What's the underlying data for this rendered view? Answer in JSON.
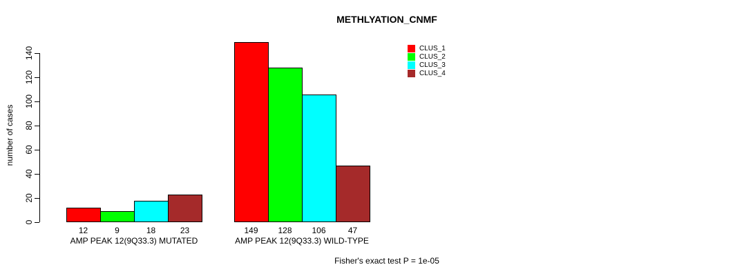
{
  "chart_data": {
    "type": "bar",
    "title": "METHLYATION_CNMF",
    "ylabel": "number of cases",
    "xlabel": "",
    "ylim": [
      0,
      140
    ],
    "yticks": [
      0,
      20,
      40,
      60,
      80,
      100,
      120,
      140
    ],
    "grid": false,
    "legend_position": "top-right",
    "show_value_labels": true,
    "categories": [
      "AMP PEAK 12(9Q33.3) MUTATED",
      "AMP PEAK 12(9Q33.3) WILD-TYPE"
    ],
    "series": [
      {
        "name": "CLUS_1",
        "color": "#ff0000",
        "values": [
          12,
          149
        ]
      },
      {
        "name": "CLUS_2",
        "color": "#00ff00",
        "values": [
          9,
          128
        ]
      },
      {
        "name": "CLUS_3",
        "color": "#00ffff",
        "values": [
          18,
          106
        ]
      },
      {
        "name": "CLUS_4",
        "color": "#a52a2a",
        "values": [
          23,
          47
        ]
      }
    ],
    "annotation": "Fisher's exact test P = 1e-05"
  }
}
